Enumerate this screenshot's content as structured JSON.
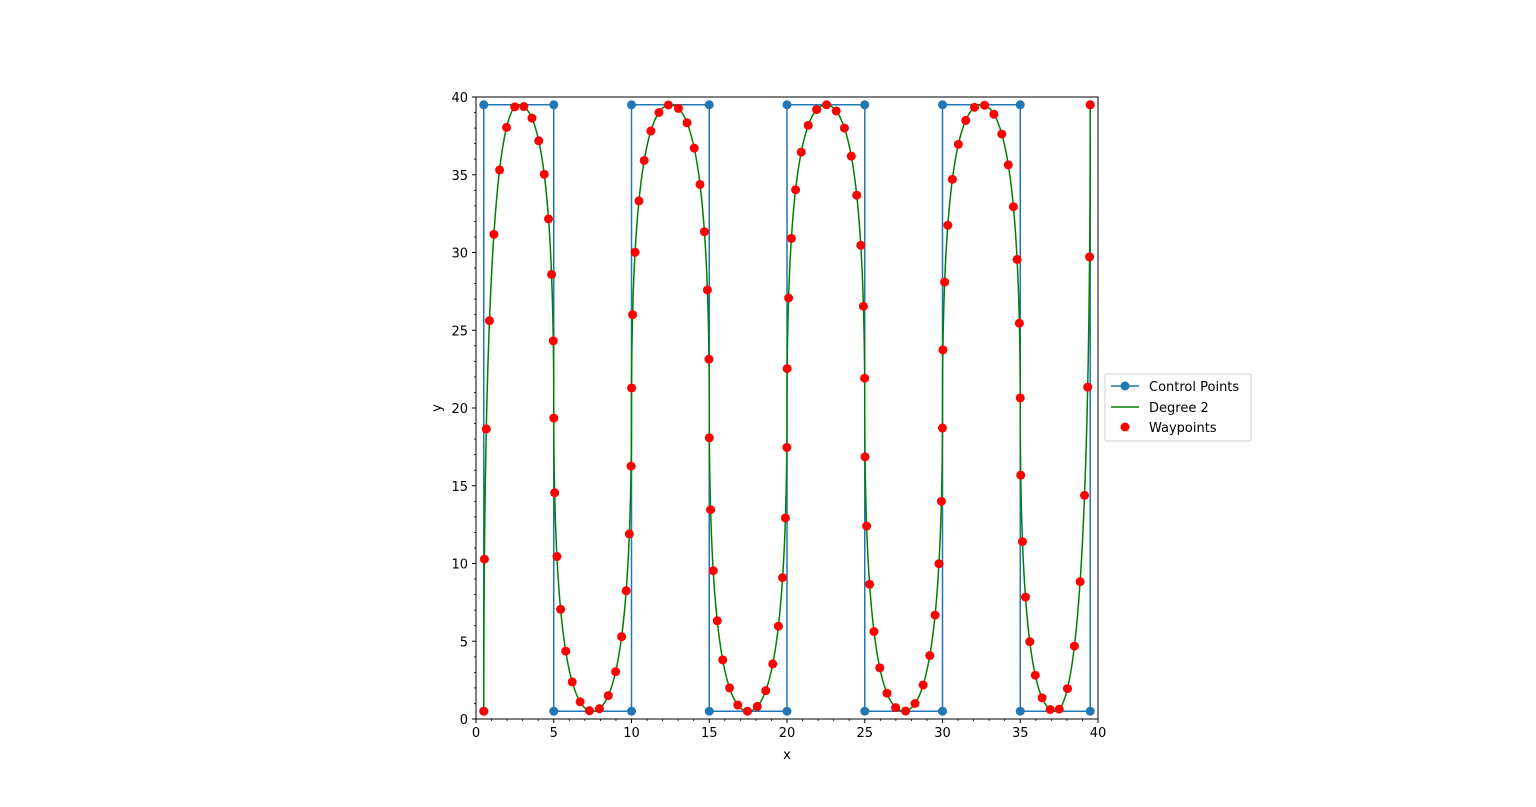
{
  "chart_data": {
    "type": "line",
    "title": "",
    "xlabel": "x",
    "ylabel": "y",
    "xlim": [
      0,
      40
    ],
    "ylim": [
      0,
      40
    ],
    "xticks": [
      0,
      5,
      10,
      15,
      20,
      25,
      30,
      35,
      40
    ],
    "yticks": [
      0,
      5,
      10,
      15,
      20,
      25,
      30,
      35,
      40
    ],
    "xtick_labels": [
      "0",
      "5",
      "10",
      "15",
      "20",
      "25",
      "30",
      "35",
      "40"
    ],
    "ytick_labels": [
      "0",
      "5",
      "10",
      "15",
      "20",
      "25",
      "30",
      "35",
      "40"
    ],
    "grid": false,
    "legend_position": "right",
    "series": [
      {
        "name": "Control Points",
        "kind": "line-with-markers",
        "color": "#1f77b4",
        "x": [
          0.5,
          0.5,
          5.0,
          5.0,
          10.0,
          10.0,
          15.0,
          15.0,
          20.0,
          20.0,
          25.0,
          25.0,
          30.0,
          30.0,
          35.0,
          35.0,
          39.5,
          39.5
        ],
        "y": [
          0.5,
          39.5,
          39.5,
          0.5,
          0.5,
          39.5,
          39.5,
          0.5,
          0.5,
          39.5,
          39.5,
          0.5,
          0.5,
          39.5,
          39.5,
          0.5,
          0.5,
          39.5
        ]
      },
      {
        "name": "Degree 2",
        "kind": "curve",
        "color": "#008000",
        "degree": 2
      },
      {
        "name": "Waypoints",
        "kind": "scatter",
        "color": "#ff0000",
        "count": 120
      }
    ]
  }
}
